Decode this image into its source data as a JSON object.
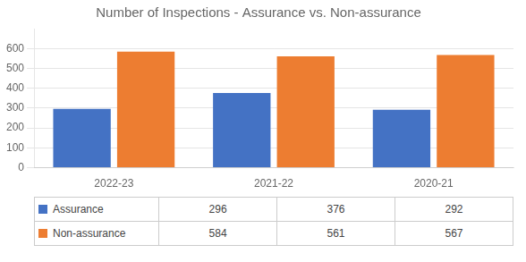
{
  "chart_data": {
    "type": "bar",
    "title": "Number of Inspections - Assurance vs. Non-assurance",
    "categories": [
      "2022-23",
      "2021-22",
      "2020-21"
    ],
    "series": [
      {
        "name": "Assurance",
        "color": "#4472C4",
        "values": [
          296,
          376,
          292
        ]
      },
      {
        "name": "Non-assurance",
        "color": "#ED7D31",
        "values": [
          584,
          561,
          567
        ]
      }
    ],
    "ylim": [
      0,
      700
    ],
    "yticks": [
      0,
      100,
      200,
      300,
      400,
      500,
      600
    ],
    "grid": true,
    "legend": "bottom"
  }
}
